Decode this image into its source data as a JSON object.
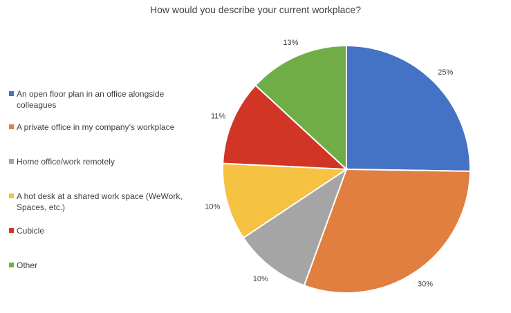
{
  "chart_data": {
    "type": "pie",
    "title": "How would you describe your current workplace?",
    "legend_position": "left",
    "slices": [
      {
        "name": "An open floor plan in an office alongside colleagues",
        "value": 25,
        "label": "25%",
        "color": "#4472C4"
      },
      {
        "name": "A private office in my company’s workplace",
        "value": 30,
        "label": "30%",
        "color": "#E07F3F"
      },
      {
        "name": "Home office/work remotely",
        "value": 10,
        "label": "10%",
        "color": "#A5A5A5"
      },
      {
        "name": "A hot desk at a shared work space (WeWork, Spaces, etc.)",
        "value": 10,
        "label": "10%",
        "color": "#F5C242"
      },
      {
        "name": "Cubicle",
        "value": 11,
        "label": "11%",
        "color": "#D13525"
      },
      {
        "name": "Other",
        "value": 13,
        "label": "13%",
        "color": "#70AD47"
      }
    ]
  }
}
